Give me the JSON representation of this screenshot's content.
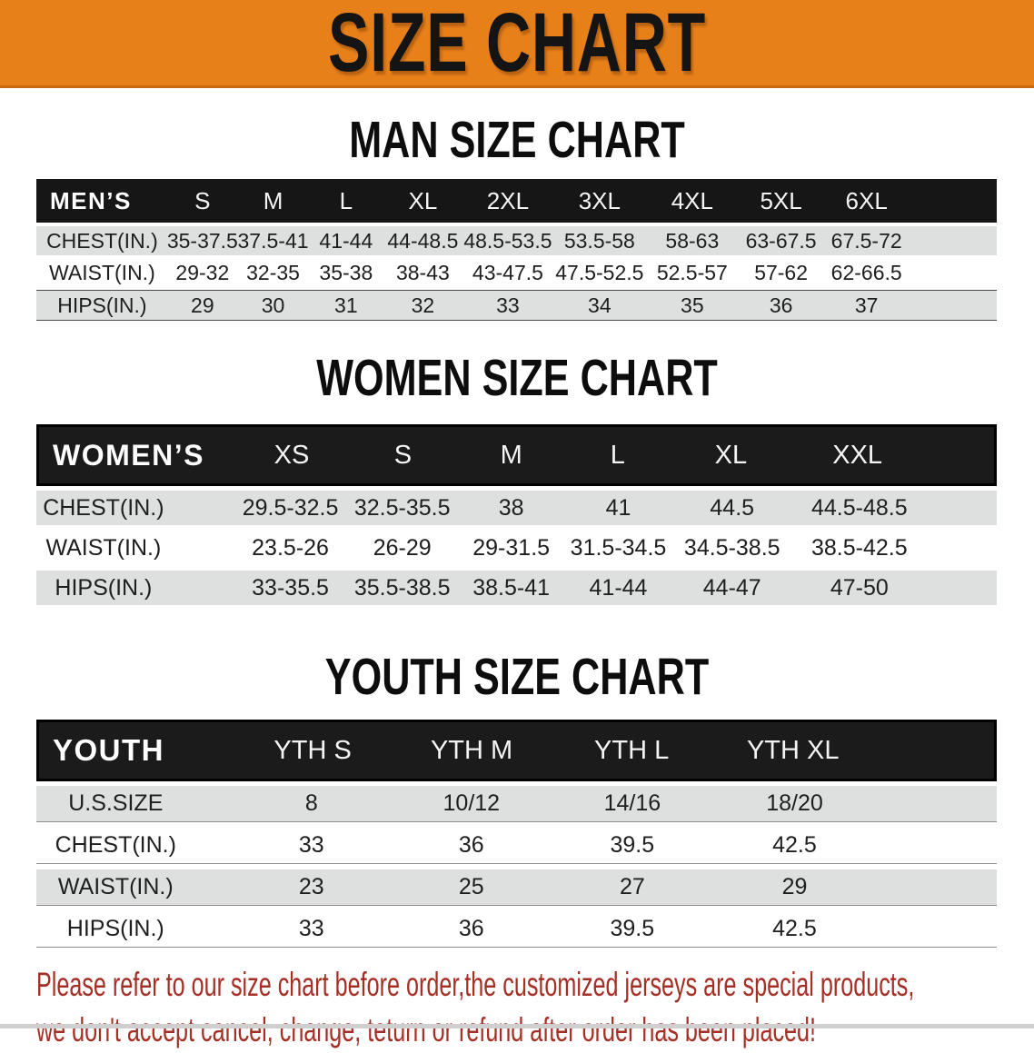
{
  "banner": {
    "title": "SIZE CHART",
    "bg_color": "#E8801A"
  },
  "sections": [
    {
      "heading": "MAN SIZE CHART",
      "table": {
        "header_label": "MEN’S",
        "columns": [
          "S",
          "M",
          "L",
          "XL",
          "2XL",
          "3XL",
          "4XL",
          "5XL",
          "6XL"
        ],
        "rows": [
          {
            "label": "CHEST(IN.)",
            "values": [
              "35-37.5",
              "37.5-41",
              "41-44",
              "44-48.5",
              "48.5-53.5",
              "53.5-58",
              "58-63",
              "63-67.5",
              "67.5-72"
            ]
          },
          {
            "label": "WAIST(IN.)",
            "values": [
              "29-32",
              "32-35",
              "35-38",
              "38-43",
              "43-47.5",
              "47.5-52.5",
              "52.5-57",
              "57-62",
              "62-66.5"
            ]
          },
          {
            "label": "HIPS(IN.)",
            "values": [
              "29",
              "30",
              "31",
              "32",
              "33",
              "34",
              "35",
              "36",
              "37"
            ]
          }
        ]
      }
    },
    {
      "heading": "WOMEN SIZE CHART",
      "table": {
        "header_label": "WOMEN’S",
        "columns": [
          "XS",
          "S",
          "M",
          "L",
          "XL",
          "XXL"
        ],
        "rows": [
          {
            "label": "CHEST(IN.)",
            "values": [
              "29.5-32.5",
              "32.5-35.5",
              "38",
              "41",
              "44.5",
              "44.5-48.5"
            ]
          },
          {
            "label": "WAIST(IN.)",
            "values": [
              "23.5-26",
              "26-29",
              "29-31.5",
              "31.5-34.5",
              "34.5-38.5",
              "38.5-42.5"
            ]
          },
          {
            "label": "HIPS(IN.)",
            "values": [
              "33-35.5",
              "35.5-38.5",
              "38.5-41",
              "41-44",
              "44-47",
              "47-50"
            ]
          }
        ]
      }
    },
    {
      "heading": "YOUTH SIZE CHART",
      "table": {
        "header_label": "YOUTH",
        "columns": [
          "YTH S",
          "YTH M",
          "YTH L",
          "YTH XL"
        ],
        "rows": [
          {
            "label": "U.S.SIZE",
            "values": [
              "8",
              "10/12",
              "14/16",
              "18/20"
            ]
          },
          {
            "label": "CHEST(IN.)",
            "values": [
              "33",
              "36",
              "39.5",
              "42.5"
            ]
          },
          {
            "label": "WAIST(IN.)",
            "values": [
              "23",
              "25",
              "27",
              "29"
            ]
          },
          {
            "label": "HIPS(IN.)",
            "values": [
              "33",
              "36",
              "39.5",
              "42.5"
            ]
          }
        ]
      }
    }
  ],
  "footer": {
    "line1": "Please refer to our size chart before order,the customized jerseys are special products,",
    "line2": "we don't accept cancel, change, teturn or refund after order has been placed!",
    "text_color": "#A52F25"
  }
}
